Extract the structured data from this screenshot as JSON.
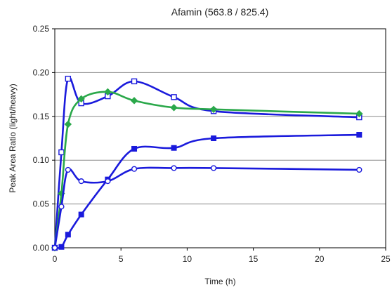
{
  "chart_data": {
    "type": "line",
    "title": "Afamin (563.8 / 825.4)",
    "xlabel": "Time (h)",
    "ylabel": "Peak Area Ratio (light/heavy)",
    "xlim": [
      0,
      25
    ],
    "ylim": [
      0,
      0.25
    ],
    "xticks": [
      0,
      5,
      10,
      15,
      20,
      25
    ],
    "yticks": [
      0.0,
      0.05,
      0.1,
      0.15,
      0.2,
      0.25
    ],
    "xtick_labels": [
      "0",
      "5",
      "10",
      "15",
      "20",
      "25"
    ],
    "ytick_labels": [
      "0.00",
      "0.05",
      "0.10",
      "0.15",
      "0.20",
      "0.25"
    ],
    "grid": "horizontal",
    "legend": "none",
    "series": [
      {
        "marker": "open-square",
        "color": "#1a1adc",
        "x": [
          0,
          0.5,
          1,
          2,
          4,
          6,
          9,
          12,
          23
        ],
        "y": [
          0.0,
          0.109,
          0.193,
          0.165,
          0.173,
          0.19,
          0.172,
          0.156,
          0.149
        ]
      },
      {
        "marker": "filled-diamond",
        "color": "#2aa84a",
        "x": [
          0,
          0.5,
          1,
          2,
          4,
          6,
          9,
          12,
          23
        ],
        "y": [
          0.0,
          0.062,
          0.141,
          0.17,
          0.178,
          0.168,
          0.16,
          0.158,
          0.153
        ]
      },
      {
        "marker": "filled-square",
        "color": "#1a1adc",
        "x": [
          0,
          0.5,
          1,
          2,
          4,
          6,
          9,
          12,
          23
        ],
        "y": [
          0.0,
          0.001,
          0.015,
          0.038,
          0.078,
          0.113,
          0.114,
          0.125,
          0.129
        ]
      },
      {
        "marker": "open-circle",
        "color": "#1a1adc",
        "x": [
          0,
          0.5,
          1,
          2,
          4,
          6,
          9,
          12,
          23
        ],
        "y": [
          0.0,
          0.047,
          0.089,
          0.076,
          0.076,
          0.09,
          0.091,
          0.091,
          0.089
        ]
      }
    ]
  }
}
